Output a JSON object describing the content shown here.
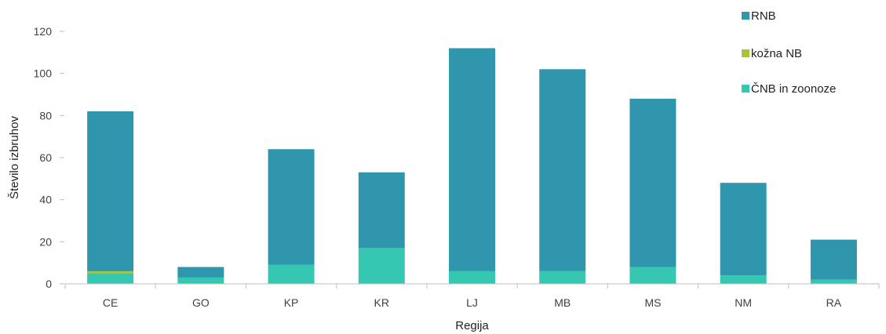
{
  "chart_data": {
    "type": "bar",
    "stacked": true,
    "categories": [
      "CE",
      "GO",
      "KP",
      "KR",
      "LJ",
      "MB",
      "MS",
      "NM",
      "RA"
    ],
    "series": [
      {
        "name": "ČNB in zoonoze",
        "color": "#36c7b3",
        "values": [
          5,
          3,
          9,
          17,
          6,
          6,
          8,
          4,
          2
        ]
      },
      {
        "name": "kožna NB",
        "color": "#a7c33a",
        "values": [
          1,
          0,
          0,
          0,
          0,
          0,
          0,
          0,
          0
        ]
      },
      {
        "name": "RNB",
        "color": "#2f96ad",
        "values": [
          76,
          5,
          55,
          36,
          106,
          96,
          80,
          44,
          19
        ]
      }
    ],
    "legend_order": [
      "RNB",
      "kožna NB",
      "ČNB in zoonoze"
    ],
    "legend_position": "top-right",
    "xlabel": "Regija",
    "ylabel": "Število izbruhov",
    "ylim": [
      0,
      120
    ],
    "yticks": [
      0,
      20,
      40,
      60,
      80,
      100,
      120
    ],
    "grid": false
  }
}
